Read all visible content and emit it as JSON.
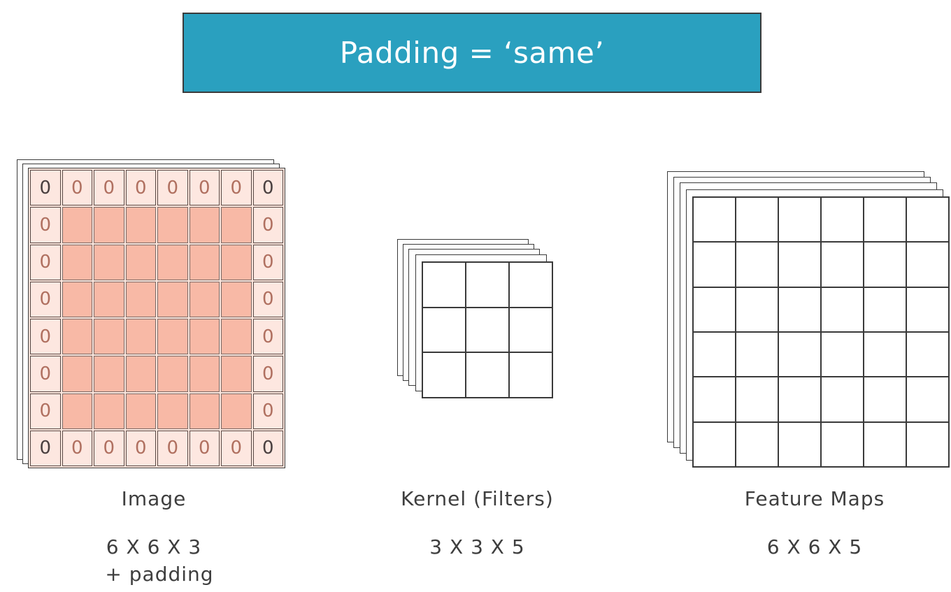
{
  "title": "Padding = ‘same’",
  "colors": {
    "banner": "#2aa0bf",
    "image_cell": "#f8b9a6",
    "padding_cell": "#fde7e0"
  },
  "image": {
    "label": "Image",
    "dims": "6 X 6 X 3",
    "dims2": "+ padding",
    "padding_value": "0"
  },
  "kernel": {
    "label": "Kernel (Filters)",
    "dims": "3 X 3 X 5"
  },
  "feature_maps": {
    "label": "Feature Maps",
    "dims": "6 X 6 X 5"
  }
}
